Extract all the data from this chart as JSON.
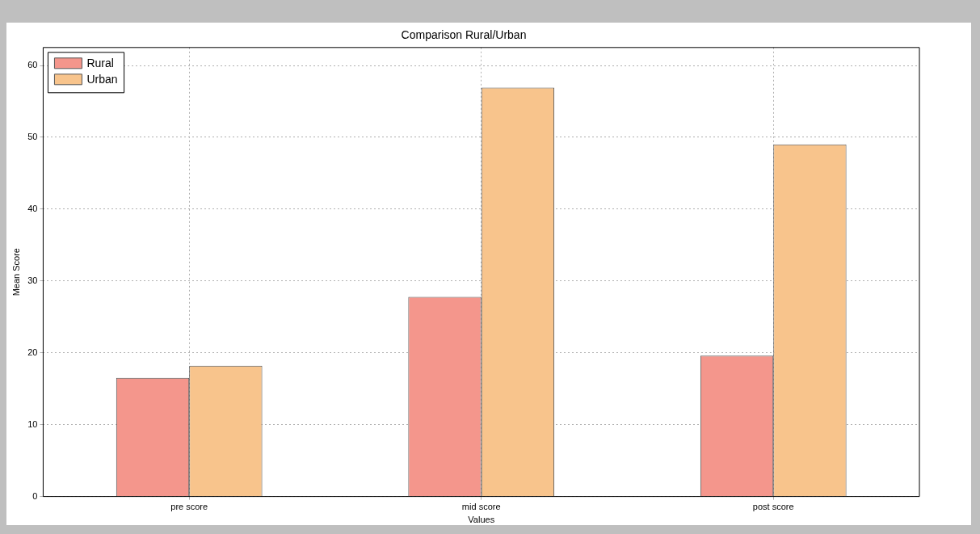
{
  "chart_data": {
    "type": "bar",
    "title": "Comparison Rural/Urban",
    "xlabel": "Values",
    "ylabel": "Mean Score",
    "categories": [
      "pre score",
      "mid score",
      "post score"
    ],
    "series": [
      {
        "name": "Rural",
        "color": "#f4968c",
        "values": [
          16.5,
          27.8,
          19.6
        ]
      },
      {
        "name": "Urban",
        "color": "#f8c48c",
        "values": [
          18.2,
          56.9,
          49.0
        ]
      }
    ],
    "ylim": [
      0,
      62.5
    ],
    "yticks": [
      0,
      10,
      20,
      30,
      40,
      50,
      60
    ],
    "grid": true,
    "legend": "top left"
  }
}
